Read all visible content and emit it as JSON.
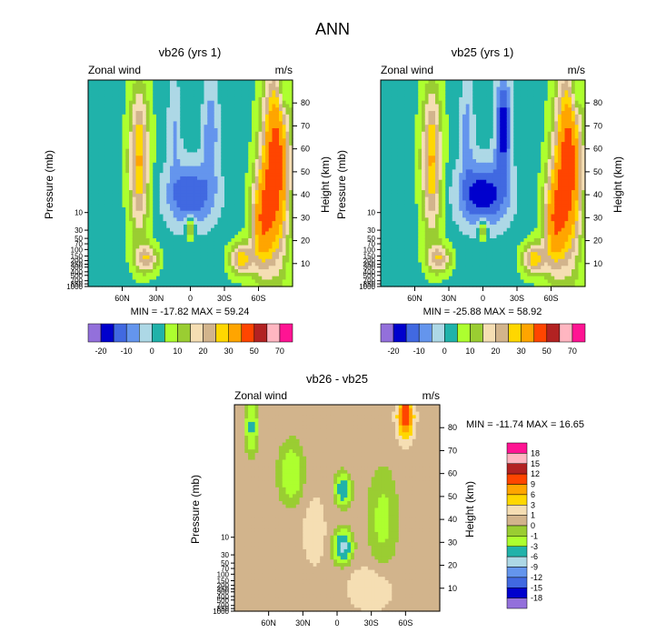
{
  "title": "ANN",
  "chart_data": [
    {
      "type": "heatmap",
      "title": "vb26 (yrs 1)",
      "left_label": "Zonal wind",
      "units": "m/s",
      "ylabel": "Pressure (mb)",
      "ylabel_right": "Height (km)",
      "x_ticks": [
        "60N",
        "30N",
        "0",
        "30S",
        "60S"
      ],
      "y_ticks_pressure": [
        "10",
        "30",
        "50",
        "70",
        "100",
        "150",
        "200",
        "250",
        "300",
        "400",
        "500",
        "700",
        "850",
        "1000"
      ],
      "y_ticks_height": [
        "10",
        "20",
        "30",
        "40",
        "50",
        "60",
        "70",
        "80"
      ],
      "stats": "MIN = -17.82  MAX =  59.24",
      "colorbar": {
        "labels": [
          "-20",
          "-10",
          "0",
          "10",
          "20",
          "30",
          "50",
          "70"
        ],
        "colors": [
          "#9370db",
          "#0000cd",
          "#4169e1",
          "#6495ed",
          "#add8e6",
          "#20b2aa",
          "#adff2f",
          "#9acd32",
          "#f5deb3",
          "#d2b48c",
          "#ffd700",
          "#ffa500",
          "#ff4500",
          "#b22222",
          "#ffb6c1",
          "#ff1493"
        ]
      },
      "fields": [
        {
          "lat": -75,
          "h": 52,
          "sx": 12,
          "sh": 40,
          "v": 45
        },
        {
          "lat": -62,
          "h": 28,
          "sx": 9,
          "sh": 22,
          "v": 28
        },
        {
          "lat": -45,
          "h": 12,
          "sx": 10,
          "sh": 7,
          "v": 25
        },
        {
          "lat": 45,
          "h": 55,
          "sx": 9,
          "sh": 32,
          "v": 28
        },
        {
          "lat": 38,
          "h": 12,
          "sx": 10,
          "sh": 6,
          "v": 20
        },
        {
          "lat": 0,
          "h": 40,
          "sx": 22,
          "sh": 14,
          "v": -18
        },
        {
          "lat": 0,
          "h": 25,
          "sx": 4,
          "sh": 5,
          "v": 18
        },
        {
          "lat": -18,
          "h": 68,
          "sx": 7,
          "sh": 22,
          "v": -12
        },
        {
          "lat": 14,
          "h": 70,
          "sx": 6,
          "sh": 22,
          "v": -8
        },
        {
          "lat": -82,
          "h": 85,
          "sx": 5,
          "sh": 12,
          "v": -12
        }
      ],
      "base": 3
    },
    {
      "type": "heatmap",
      "title": "vb25 (yrs 1)",
      "left_label": "Zonal wind",
      "units": "m/s",
      "ylabel": "Pressure (mb)",
      "ylabel_right": "Height (km)",
      "x_ticks": [
        "60N",
        "30N",
        "0",
        "30S",
        "60S"
      ],
      "y_ticks_pressure": [
        "10",
        "30",
        "50",
        "70",
        "100",
        "150",
        "200",
        "250",
        "300",
        "400",
        "500",
        "700",
        "850",
        "1000"
      ],
      "y_ticks_height": [
        "10",
        "20",
        "30",
        "40",
        "50",
        "60",
        "70",
        "80"
      ],
      "stats": "MIN = -25.88  MAX =  58.92",
      "colorbar": {
        "labels": [
          "-20",
          "-10",
          "0",
          "10",
          "20",
          "30",
          "50",
          "70"
        ],
        "colors": [
          "#9370db",
          "#0000cd",
          "#4169e1",
          "#6495ed",
          "#add8e6",
          "#20b2aa",
          "#adff2f",
          "#9acd32",
          "#f5deb3",
          "#d2b48c",
          "#ffd700",
          "#ffa500",
          "#ff4500",
          "#b22222",
          "#ffb6c1",
          "#ff1493"
        ]
      },
      "fields": [
        {
          "lat": -75,
          "h": 52,
          "sx": 12,
          "sh": 40,
          "v": 45
        },
        {
          "lat": -62,
          "h": 28,
          "sx": 9,
          "sh": 22,
          "v": 28
        },
        {
          "lat": -45,
          "h": 12,
          "sx": 10,
          "sh": 7,
          "v": 25
        },
        {
          "lat": 45,
          "h": 55,
          "sx": 9,
          "sh": 32,
          "v": 28
        },
        {
          "lat": 38,
          "h": 12,
          "sx": 10,
          "sh": 6,
          "v": 20
        },
        {
          "lat": 0,
          "h": 40,
          "sx": 22,
          "sh": 14,
          "v": -22
        },
        {
          "lat": 0,
          "h": 25,
          "sx": 4,
          "sh": 5,
          "v": 18
        },
        {
          "lat": -18,
          "h": 70,
          "sx": 7,
          "sh": 22,
          "v": -22
        },
        {
          "lat": 14,
          "h": 70,
          "sx": 6,
          "sh": 22,
          "v": -10
        },
        {
          "lat": -82,
          "h": 85,
          "sx": 5,
          "sh": 12,
          "v": -12
        }
      ],
      "base": 3
    },
    {
      "type": "heatmap",
      "title": "vb26 - vb25",
      "left_label": "Zonal wind",
      "units": "m/s",
      "ylabel": "Pressure (mb)",
      "ylabel_right": "Height (km)",
      "x_ticks": [
        "60N",
        "30N",
        "0",
        "30S",
        "60S"
      ],
      "y_ticks_pressure": [
        "10",
        "30",
        "50",
        "70",
        "100",
        "150",
        "200",
        "250",
        "300",
        "400",
        "500",
        "700",
        "850",
        "1000"
      ],
      "y_ticks_height": [
        "10",
        "20",
        "30",
        "40",
        "50",
        "60",
        "70",
        "80"
      ],
      "stats": "MIN = -11.74  MAX =  16.65",
      "colorbar": {
        "labels": [
          "18",
          "15",
          "12",
          "9",
          "6",
          "3",
          "1",
          "0",
          "-1",
          "-3",
          "-6",
          "-9",
          "-12",
          "-15",
          "-18"
        ],
        "colors": [
          "#ff1493",
          "#ffb6c1",
          "#b22222",
          "#ff4500",
          "#ffa500",
          "#ffd700",
          "#f5deb3",
          "#d2b48c",
          "#9acd32",
          "#adff2f",
          "#20b2aa",
          "#add8e6",
          "#6495ed",
          "#4169e1",
          "#0000cd",
          "#9370db"
        ]
      },
      "fields": [
        {
          "lat": -60,
          "h": 85,
          "sx": 6,
          "sh": 8,
          "v": 12
        },
        {
          "lat": -5,
          "h": 28,
          "sx": 7,
          "sh": 6,
          "v": -8
        },
        {
          "lat": -5,
          "h": 53,
          "sx": 6,
          "sh": 6,
          "v": -6
        },
        {
          "lat": 40,
          "h": 60,
          "sx": 10,
          "sh": 12,
          "v": -3
        },
        {
          "lat": 20,
          "h": 35,
          "sx": 12,
          "sh": 18,
          "v": 1
        },
        {
          "lat": -40,
          "h": 40,
          "sx": 12,
          "sh": 20,
          "v": -2
        },
        {
          "lat": -30,
          "h": 10,
          "sx": 20,
          "sh": 10,
          "v": 1.5
        },
        {
          "lat": 75,
          "h": 80,
          "sx": 5,
          "sh": 10,
          "v": -4
        }
      ],
      "base": 0.5
    }
  ]
}
